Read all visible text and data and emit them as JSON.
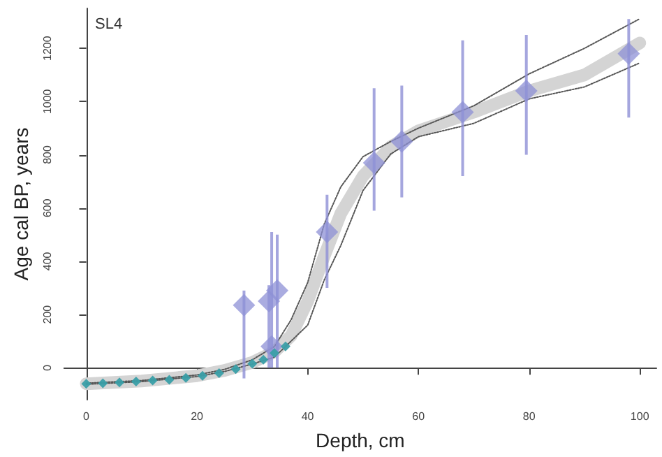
{
  "chart_data": {
    "type": "scatter",
    "xlabel": "Depth, cm",
    "ylabel": "Age cal BP, years",
    "annotations": [
      "SL4"
    ],
    "xlim": [
      -4,
      103
    ],
    "ylim": [
      -120,
      1350
    ],
    "xticks": [
      0,
      20,
      40,
      60,
      80,
      100
    ],
    "yticks": [
      0,
      200,
      400,
      600,
      800,
      1000,
      1200
    ],
    "series": [
      {
        "type": "line",
        "color": "#d4d4d4",
        "line_style": "solid",
        "marker": "none",
        "x": [
          0,
          10,
          20,
          25,
          30,
          34,
          37,
          40,
          43,
          46,
          50,
          55,
          60,
          70,
          80,
          90,
          100
        ],
        "values": [
          -60,
          -50,
          -30,
          -10,
          20,
          60,
          120,
          250,
          420,
          580,
          720,
          830,
          890,
          960,
          1040,
          1100,
          1220
        ]
      },
      {
        "type": "line",
        "color": "#555555",
        "line_style": "dotted",
        "marker": "none",
        "x": [
          0,
          10,
          20,
          25,
          30,
          34,
          37,
          40,
          43,
          46,
          50,
          55,
          60,
          70,
          80,
          90,
          100
        ],
        "values": [
          -62,
          -52,
          -33,
          -14,
          14,
          40,
          100,
          160,
          330,
          460,
          666,
          803,
          868,
          918,
          1010,
          1055,
          1145
        ]
      },
      {
        "type": "line",
        "color": "#555555",
        "line_style": "dotted",
        "marker": "none",
        "x": [
          0,
          10,
          20,
          25,
          30,
          34,
          37,
          40,
          43,
          46,
          50,
          55,
          60,
          70,
          80,
          90,
          100
        ],
        "values": [
          -58,
          -48,
          -27,
          -6,
          30,
          80,
          180,
          320,
          540,
          680,
          793,
          850,
          900,
          984,
          1104,
          1200,
          1311
        ]
      },
      {
        "color": "#3a9fa8",
        "marker": "diamond",
        "x": [
          0,
          3,
          6,
          9,
          12,
          15,
          18,
          21,
          24,
          27,
          30,
          32,
          34,
          36
        ],
        "values": [
          -60,
          -58,
          -55,
          -52,
          -48,
          -45,
          -38,
          -30,
          -20,
          -5,
          15,
          30,
          55,
          80
        ]
      },
      {
        "color": "#8e90d6",
        "marker": "diamond",
        "x": [
          28.5,
          33,
          33.5,
          34.5,
          43.5,
          52,
          57,
          68,
          79.5,
          98
        ],
        "values": [
          235,
          250,
          80,
          290,
          510,
          770,
          850,
          960,
          1040,
          1180
        ],
        "errors": [
          [
            -40,
            290
          ],
          [
            0,
            310
          ],
          [
            0,
            510
          ],
          [
            0,
            500
          ],
          [
            300,
            650
          ],
          [
            590,
            1050
          ],
          [
            640,
            1060
          ],
          [
            720,
            1230
          ],
          [
            800,
            1250
          ],
          [
            940,
            1310
          ]
        ]
      }
    ]
  }
}
